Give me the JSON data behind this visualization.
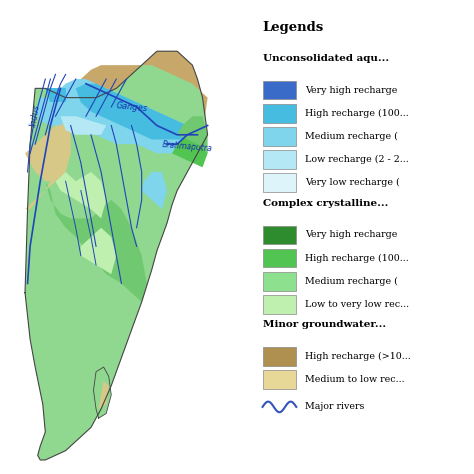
{
  "background_color": "#ffffff",
  "legend_title": "Legends",
  "sections": [
    {
      "label": "Unconsolidated aqu...",
      "items": [
        {
          "color": "#3a6bc9",
          "text": "Very high recharge"
        },
        {
          "color": "#45bce0",
          "text": "High recharge (100..."
        },
        {
          "color": "#7fd5ec",
          "text": "Medium recharge ("
        },
        {
          "color": "#b5e8f5",
          "text": "Low recharge (2 - 2..."
        },
        {
          "color": "#ddf4fb",
          "text": "Very low recharge ("
        }
      ]
    },
    {
      "label": "Complex crystalline...",
      "items": [
        {
          "color": "#2e8b2e",
          "text": "Very high recharge"
        },
        {
          "color": "#52c452",
          "text": "High recharge (100..."
        },
        {
          "color": "#8de08d",
          "text": "Medium recharge ("
        },
        {
          "color": "#c0f0b0",
          "text": "Low to very low rec..."
        }
      ]
    },
    {
      "label": "Minor groundwater...",
      "items": [
        {
          "color": "#b09050",
          "text": "High recharge (>10..."
        },
        {
          "color": "#e8d898",
          "text": "Medium to low rec..."
        }
      ]
    }
  ],
  "river_legend": {
    "color": "#3355bb",
    "text": "Major rivers"
  },
  "colors": {
    "bg_water": "#ddf4fb",
    "himalayas": "#c8a86a",
    "thar": "#d8c888",
    "plains_cyan": "#7fd5ec",
    "plains_blue": "#45bce0",
    "deccan_green": "#90d890",
    "deccan_light": "#b8edb0",
    "deccan_med": "#70c870",
    "ne_green": "#52c452",
    "river": "#2244bb",
    "border": "#444444",
    "label": "#1133aa"
  },
  "map_area": [
    0.01,
    0.01,
    0.535,
    0.98
  ],
  "leg_area": [
    0.545,
    0.04,
    0.445,
    0.94
  ]
}
